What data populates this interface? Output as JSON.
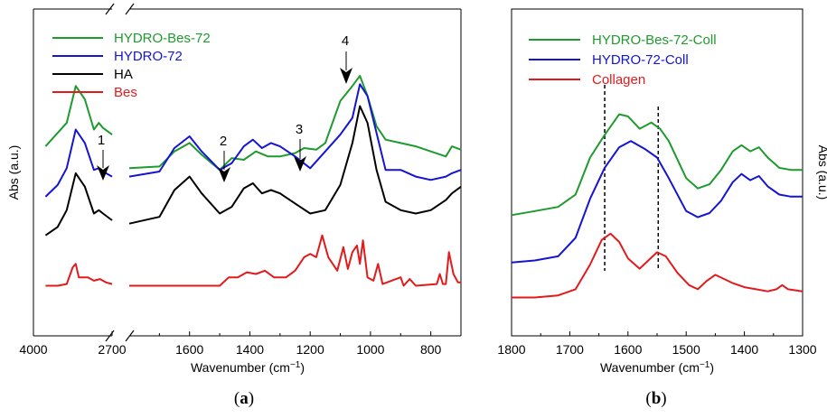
{
  "colors": {
    "green": "#1f9a2e",
    "blue": "#1414d2",
    "black": "#000000",
    "red": "#e31a1c"
  },
  "chart_data": [
    {
      "panel": "a",
      "type": "line",
      "xlabel": "Wavenumber (cm-1)",
      "ylabel": "Abs (a.u.)",
      "x_broken": true,
      "left_segment": {
        "xlim": [
          4000,
          2700
        ],
        "ticks": [
          "4000",
          "2700"
        ]
      },
      "right_segment": {
        "xlim": [
          1800,
          700
        ],
        "ticks": [
          "1600",
          "1400",
          "1200",
          "1000",
          "800"
        ]
      },
      "legend": [
        "HYDRO-Bes-72",
        "HYDRO-72",
        "HA",
        "Bes"
      ],
      "annotations": [
        "1",
        "2",
        "3",
        "4"
      ],
      "series": [
        {
          "name": "HYDRO-Bes-72",
          "color": "green",
          "left": [
            [
              3800,
              0.58
            ],
            [
              3600,
              0.66
            ],
            [
              3450,
              0.72
            ],
            [
              3300,
              0.94
            ],
            [
              3150,
              0.86
            ],
            [
              3000,
              0.68
            ],
            [
              2920,
              0.72
            ],
            [
              2850,
              0.69
            ],
            [
              2700,
              0.65
            ]
          ],
          "right": [
            [
              1800,
              0.45
            ],
            [
              1700,
              0.46
            ],
            [
              1650,
              0.55
            ],
            [
              1600,
              0.6
            ],
            [
              1560,
              0.53
            ],
            [
              1500,
              0.44
            ],
            [
              1460,
              0.51
            ],
            [
              1420,
              0.5
            ],
            [
              1380,
              0.55
            ],
            [
              1340,
              0.52
            ],
            [
              1300,
              0.52
            ],
            [
              1250,
              0.54
            ],
            [
              1220,
              0.57
            ],
            [
              1180,
              0.56
            ],
            [
              1150,
              0.6
            ],
            [
              1100,
              0.85
            ],
            [
              1060,
              0.94
            ],
            [
              1035,
              1.0
            ],
            [
              1010,
              0.88
            ],
            [
              980,
              0.7
            ],
            [
              950,
              0.62
            ],
            [
              900,
              0.6
            ],
            [
              850,
              0.58
            ],
            [
              800,
              0.55
            ],
            [
              750,
              0.52
            ],
            [
              730,
              0.58
            ],
            [
              700,
              0.56
            ]
          ]
        },
        {
          "name": "HYDRO-72",
          "color": "blue",
          "left": [
            [
              3800,
              0.28
            ],
            [
              3600,
              0.35
            ],
            [
              3450,
              0.45
            ],
            [
              3300,
              0.68
            ],
            [
              3150,
              0.6
            ],
            [
              3000,
              0.44
            ],
            [
              2920,
              0.45
            ],
            [
              2850,
              0.43
            ],
            [
              2700,
              0.4
            ]
          ],
          "right": [
            [
              1800,
              0.4
            ],
            [
              1700,
              0.43
            ],
            [
              1650,
              0.57
            ],
            [
              1600,
              0.64
            ],
            [
              1560,
              0.55
            ],
            [
              1500,
              0.44
            ],
            [
              1460,
              0.48
            ],
            [
              1420,
              0.58
            ],
            [
              1390,
              0.62
            ],
            [
              1360,
              0.57
            ],
            [
              1330,
              0.6
            ],
            [
              1300,
              0.58
            ],
            [
              1250,
              0.52
            ],
            [
              1200,
              0.45
            ],
            [
              1150,
              0.55
            ],
            [
              1100,
              0.65
            ],
            [
              1060,
              0.75
            ],
            [
              1035,
              0.95
            ],
            [
              1010,
              0.88
            ],
            [
              980,
              0.66
            ],
            [
              950,
              0.44
            ],
            [
              900,
              0.44
            ],
            [
              850,
              0.4
            ],
            [
              800,
              0.38
            ],
            [
              750,
              0.4
            ],
            [
              730,
              0.42
            ],
            [
              700,
              0.44
            ]
          ]
        },
        {
          "name": "HA",
          "color": "black",
          "left": [
            [
              3800,
              0.05
            ],
            [
              3600,
              0.1
            ],
            [
              3450,
              0.2
            ],
            [
              3300,
              0.42
            ],
            [
              3150,
              0.34
            ],
            [
              3000,
              0.18
            ],
            [
              2920,
              0.2
            ],
            [
              2850,
              0.18
            ],
            [
              2700,
              0.14
            ]
          ],
          "right": [
            [
              1800,
              0.12
            ],
            [
              1700,
              0.16
            ],
            [
              1650,
              0.32
            ],
            [
              1600,
              0.4
            ],
            [
              1560,
              0.3
            ],
            [
              1500,
              0.18
            ],
            [
              1460,
              0.22
            ],
            [
              1420,
              0.33
            ],
            [
              1390,
              0.36
            ],
            [
              1360,
              0.3
            ],
            [
              1330,
              0.32
            ],
            [
              1300,
              0.3
            ],
            [
              1250,
              0.24
            ],
            [
              1200,
              0.18
            ],
            [
              1150,
              0.2
            ],
            [
              1100,
              0.35
            ],
            [
              1060,
              0.6
            ],
            [
              1035,
              0.82
            ],
            [
              1010,
              0.72
            ],
            [
              980,
              0.44
            ],
            [
              950,
              0.25
            ],
            [
              900,
              0.2
            ],
            [
              850,
              0.18
            ],
            [
              800,
              0.2
            ],
            [
              750,
              0.26
            ],
            [
              730,
              0.3
            ],
            [
              700,
              0.34
            ]
          ]
        },
        {
          "name": "Bes",
          "color": "red",
          "left": [
            [
              3800,
              -0.25
            ],
            [
              3600,
              -0.25
            ],
            [
              3450,
              -0.24
            ],
            [
              3350,
              -0.14
            ],
            [
              3300,
              -0.12
            ],
            [
              3250,
              -0.2
            ],
            [
              3100,
              -0.2
            ],
            [
              3000,
              -0.22
            ],
            [
              2900,
              -0.21
            ],
            [
              2800,
              -0.23
            ],
            [
              2700,
              -0.24
            ]
          ],
          "right": [
            [
              1800,
              -0.25
            ],
            [
              1700,
              -0.25
            ],
            [
              1600,
              -0.25
            ],
            [
              1500,
              -0.25
            ],
            [
              1470,
              -0.2
            ],
            [
              1440,
              -0.2
            ],
            [
              1410,
              -0.17
            ],
            [
              1380,
              -0.18
            ],
            [
              1350,
              -0.16
            ],
            [
              1320,
              -0.2
            ],
            [
              1280,
              -0.2
            ],
            [
              1250,
              -0.16
            ],
            [
              1220,
              -0.08
            ],
            [
              1200,
              -0.06
            ],
            [
              1180,
              -0.08
            ],
            [
              1160,
              0.05
            ],
            [
              1140,
              -0.08
            ],
            [
              1110,
              -0.16
            ],
            [
              1090,
              -0.02
            ],
            [
              1075,
              -0.15
            ],
            [
              1060,
              -0.05
            ],
            [
              1045,
              -0.01
            ],
            [
              1035,
              -0.12
            ],
            [
              1025,
              0.02
            ],
            [
              1010,
              -0.2
            ],
            [
              990,
              -0.22
            ],
            [
              975,
              -0.12
            ],
            [
              960,
              -0.24
            ],
            [
              900,
              -0.2
            ],
            [
              890,
              -0.25
            ],
            [
              870,
              -0.21
            ],
            [
              850,
              -0.25
            ],
            [
              780,
              -0.24
            ],
            [
              770,
              -0.18
            ],
            [
              760,
              -0.24
            ],
            [
              750,
              -0.24
            ],
            [
              740,
              -0.05
            ],
            [
              725,
              -0.18
            ],
            [
              710,
              -0.23
            ],
            [
              700,
              -0.23
            ]
          ]
        }
      ]
    },
    {
      "panel": "b",
      "type": "line",
      "xlabel": "Wavenumber (cm-1)",
      "ylabel": "Abs (a.u.)",
      "xlim": [
        1800,
        1300
      ],
      "xticks": [
        "1800",
        "1700",
        "1600",
        "1500",
        "1400",
        "1300"
      ],
      "reference_lines": [
        1640,
        1548
      ],
      "legend": [
        "HYDRO-Bes-72-Coll",
        "HYDRO-72-Coll",
        "Collagen"
      ],
      "series": [
        {
          "name": "HYDRO-Bes-72-Coll",
          "color": "green",
          "points": [
            [
              1800,
              0.56
            ],
            [
              1760,
              0.58
            ],
            [
              1720,
              0.6
            ],
            [
              1690,
              0.66
            ],
            [
              1665,
              0.84
            ],
            [
              1640,
              0.95
            ],
            [
              1615,
              1.05
            ],
            [
              1600,
              1.04
            ],
            [
              1580,
              0.98
            ],
            [
              1560,
              1.01
            ],
            [
              1545,
              0.98
            ],
            [
              1530,
              0.92
            ],
            [
              1500,
              0.74
            ],
            [
              1480,
              0.69
            ],
            [
              1460,
              0.71
            ],
            [
              1440,
              0.78
            ],
            [
              1420,
              0.87
            ],
            [
              1405,
              0.9
            ],
            [
              1390,
              0.87
            ],
            [
              1375,
              0.89
            ],
            [
              1360,
              0.84
            ],
            [
              1340,
              0.79
            ],
            [
              1320,
              0.78
            ],
            [
              1300,
              0.78
            ]
          ]
        },
        {
          "name": "HYDRO-72-Coll",
          "color": "blue",
          "points": [
            [
              1800,
              0.33
            ],
            [
              1760,
              0.34
            ],
            [
              1720,
              0.36
            ],
            [
              1690,
              0.45
            ],
            [
              1665,
              0.64
            ],
            [
              1640,
              0.79
            ],
            [
              1615,
              0.89
            ],
            [
              1595,
              0.92
            ],
            [
              1570,
              0.88
            ],
            [
              1550,
              0.84
            ],
            [
              1530,
              0.74
            ],
            [
              1500,
              0.58
            ],
            [
              1480,
              0.55
            ],
            [
              1460,
              0.57
            ],
            [
              1440,
              0.63
            ],
            [
              1420,
              0.72
            ],
            [
              1405,
              0.76
            ],
            [
              1390,
              0.73
            ],
            [
              1375,
              0.75
            ],
            [
              1360,
              0.7
            ],
            [
              1340,
              0.66
            ],
            [
              1320,
              0.65
            ],
            [
              1300,
              0.65
            ]
          ]
        },
        {
          "name": "Collagen",
          "color": "red",
          "points": [
            [
              1800,
              0.16
            ],
            [
              1760,
              0.16
            ],
            [
              1720,
              0.17
            ],
            [
              1690,
              0.2
            ],
            [
              1665,
              0.32
            ],
            [
              1645,
              0.44
            ],
            [
              1630,
              0.47
            ],
            [
              1615,
              0.43
            ],
            [
              1600,
              0.35
            ],
            [
              1580,
              0.3
            ],
            [
              1565,
              0.34
            ],
            [
              1550,
              0.38
            ],
            [
              1535,
              0.36
            ],
            [
              1515,
              0.28
            ],
            [
              1495,
              0.22
            ],
            [
              1480,
              0.2
            ],
            [
              1465,
              0.24
            ],
            [
              1450,
              0.27
            ],
            [
              1435,
              0.25
            ],
            [
              1420,
              0.23
            ],
            [
              1400,
              0.21
            ],
            [
              1380,
              0.2
            ],
            [
              1360,
              0.19
            ],
            [
              1345,
              0.2
            ],
            [
              1335,
              0.22
            ],
            [
              1325,
              0.2
            ],
            [
              1300,
              0.19
            ]
          ]
        }
      ]
    }
  ],
  "labels": {
    "panel_a": "(a)",
    "panel_b": "(b)"
  }
}
